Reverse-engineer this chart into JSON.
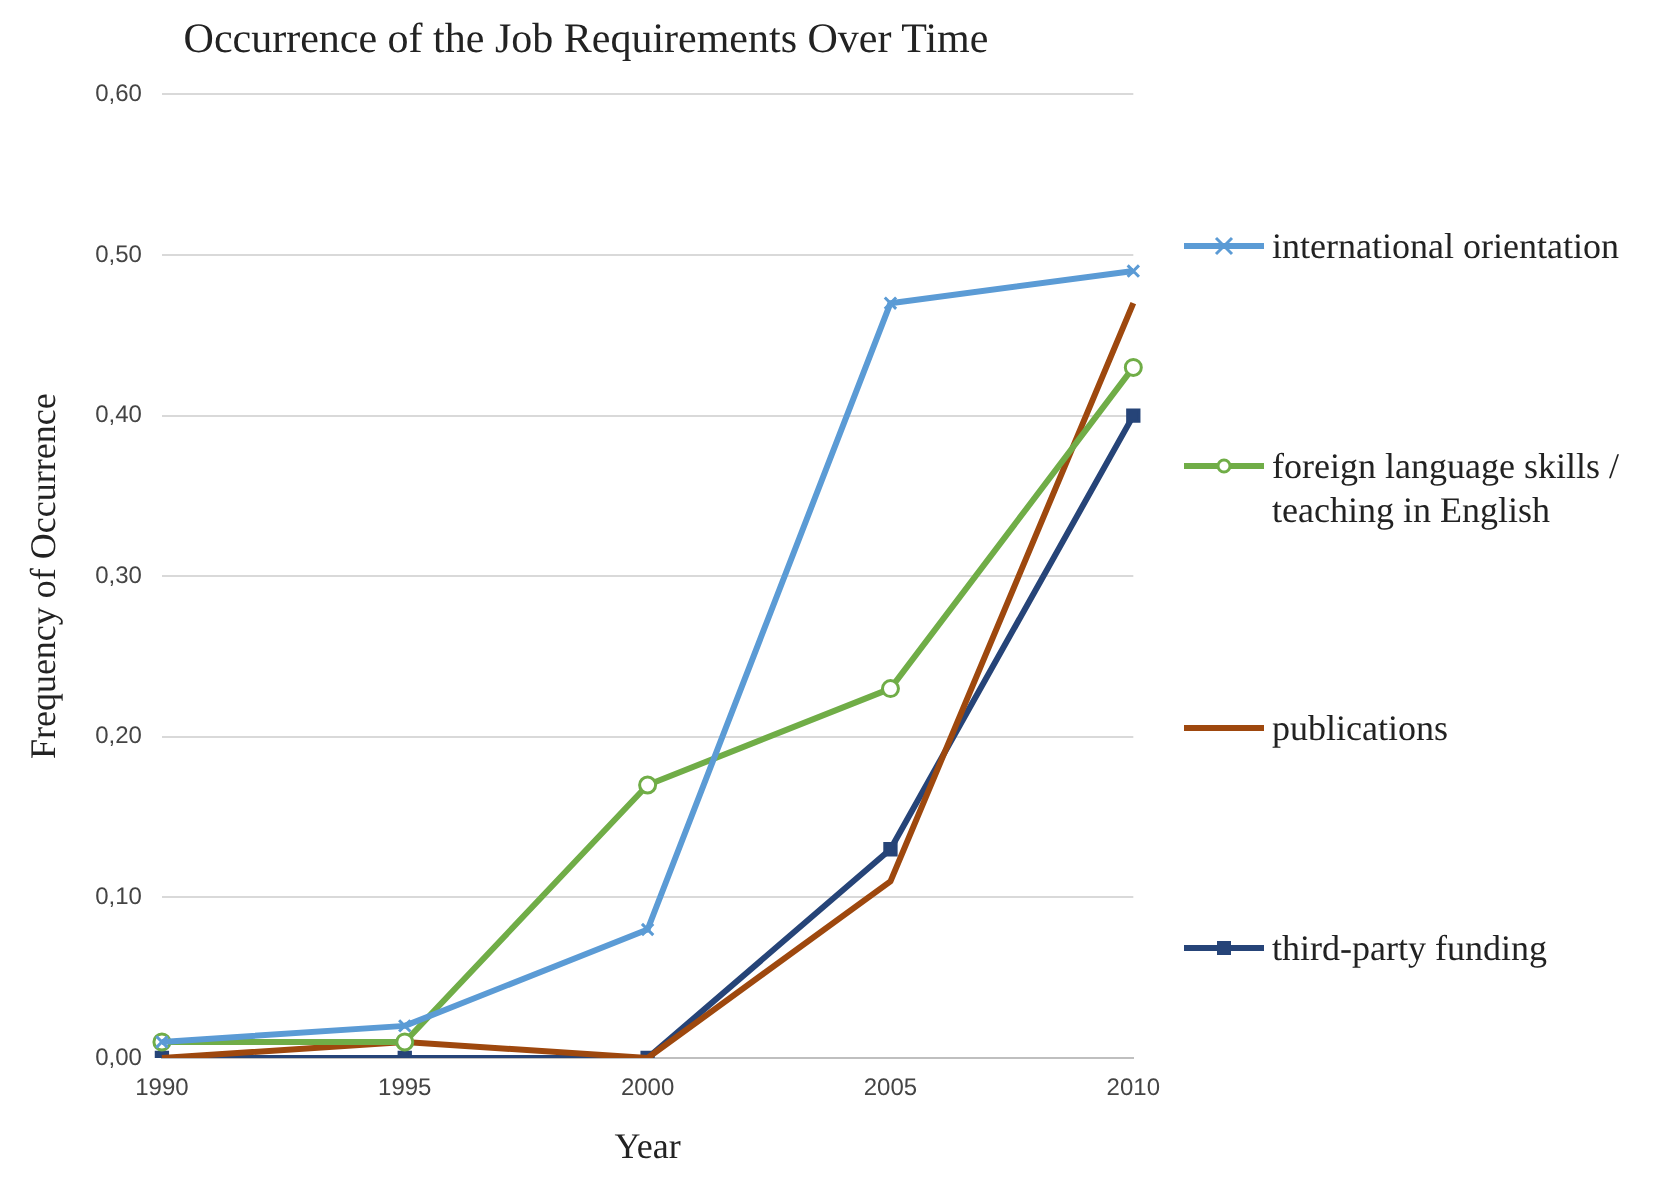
{
  "chart_data": {
    "type": "line",
    "title": "Occurrence of the Job Requirements Over Time",
    "xlabel": "Year",
    "ylabel": "Frequency of Occurrence",
    "categories": [
      "1990",
      "1995",
      "2000",
      "2005",
      "2010"
    ],
    "ylim": [
      0,
      0.6
    ],
    "yticks": [
      {
        "value": 0,
        "label": "0,00"
      },
      {
        "value": 0.1,
        "label": "0,10"
      },
      {
        "value": 0.2,
        "label": "0,20"
      },
      {
        "value": 0.3,
        "label": "0,30"
      },
      {
        "value": 0.4,
        "label": "0,40"
      },
      {
        "value": 0.5,
        "label": "0,50"
      },
      {
        "value": 0.6,
        "label": "0,60"
      }
    ],
    "grid": "y",
    "legend": "right",
    "line_style": "solid",
    "series": [
      {
        "name": "international orientation",
        "color": "#5b9bd5",
        "marker": "cross",
        "values": [
          0.01,
          0.02,
          0.08,
          0.47,
          0.49
        ]
      },
      {
        "name": "foreign language skills / teaching in English",
        "color": "#70ad47",
        "marker": "circle",
        "values": [
          0.01,
          0.01,
          0.17,
          0.23,
          0.43
        ]
      },
      {
        "name": "publications",
        "color": "#9e480e",
        "marker": "none",
        "values": [
          0,
          0.01,
          0,
          0.11,
          0.47
        ]
      },
      {
        "name": "third-party funding",
        "color": "#264478",
        "marker": "square",
        "values": [
          0,
          0,
          0,
          0.13,
          0.4
        ]
      }
    ]
  }
}
